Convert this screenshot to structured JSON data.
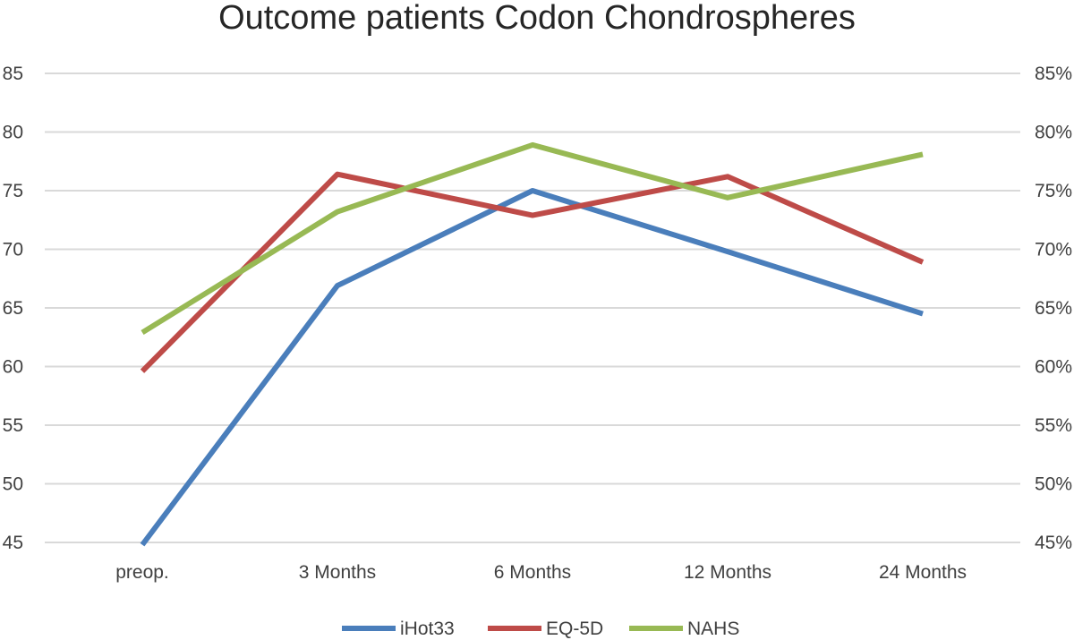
{
  "chart_data": {
    "type": "line",
    "title": "Outcome patients Codon Chondrospheres",
    "categories": [
      "preop.",
      "3 Months",
      "6 Months",
      "12 Months",
      "24 Months"
    ],
    "series": [
      {
        "name": "iHot33",
        "color": "#4a7ebb",
        "values": [
          44.8,
          66.9,
          75.0,
          69.8,
          64.5
        ]
      },
      {
        "name": "EQ-5D",
        "color": "#be4b48",
        "values": [
          59.6,
          76.4,
          72.9,
          76.2,
          68.9
        ]
      },
      {
        "name": "NAHS",
        "color": "#98b954",
        "values": [
          62.9,
          73.2,
          78.9,
          74.4,
          78.1
        ]
      }
    ],
    "ylim": [
      45,
      85
    ],
    "y_ticks_left": [
      "85",
      "80",
      "75",
      "70",
      "65",
      "60",
      "55",
      "50",
      "45"
    ],
    "y_ticks_right": [
      "85%",
      "80%",
      "75%",
      "70%",
      "65%",
      "60%",
      "55%",
      "50%",
      "45%"
    ],
    "grid": true,
    "legend": "bottom",
    "xlabel": "",
    "ylabel": ""
  }
}
